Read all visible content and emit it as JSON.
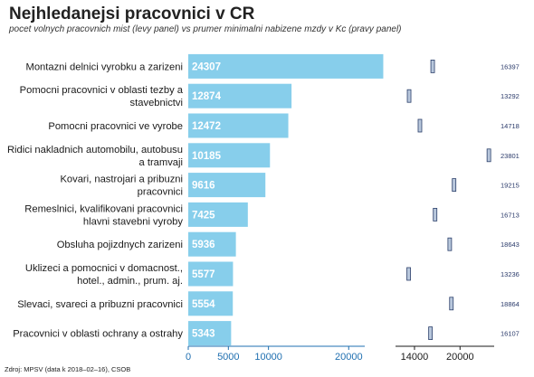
{
  "title": "Nejhledanejsi pracovnici v CR",
  "subtitle": "pocet volnych pracovnich mist (levy panel) vs prumer minimalni nabizene mzdy v Kc (pravy panel)",
  "source": "Zdroj: MPSV (data k 2018–02–16), CSOB",
  "colors": {
    "bar": "#87CEEB",
    "marker_fill": "#b8c7dc",
    "marker_stroke": "#2b3f6a",
    "axis_left": "#1f6fb0",
    "axis_right": "#1a1a1a"
  },
  "chart_data": [
    {
      "type": "bar",
      "orientation": "horizontal",
      "title": "",
      "xlabel": "",
      "ylabel": "",
      "xlim": [
        0,
        22000
      ],
      "xticks": [
        0,
        5000,
        10000,
        20000
      ],
      "xtick_labels": [
        "0",
        "5000",
        "10000",
        "20000"
      ],
      "grid": false,
      "categories": [
        [
          "Montazni delnici vyrobku a zarizeni"
        ],
        [
          "Pomocni pracovnici v oblasti tezby a",
          "stavebnictvi"
        ],
        [
          "Pomocni pracovnici ve vyrobe"
        ],
        [
          "Ridici nakladnich automobilu, autobusu",
          "a tramvaji"
        ],
        [
          "Kovari, nastrojari a pribuzni",
          "pracovnici"
        ],
        [
          "Remeslnici, kvalifikovani pracovnici",
          "hlavni stavebni vyroby"
        ],
        [
          "Obsluha pojizdnych zarizeni"
        ],
        [
          "Uklizeci a pomocnici v domacnost.,",
          "hotel., admin., prum. aj."
        ],
        [
          "Slevaci, svareci a pribuzni pracovnici"
        ],
        [
          "Pracovnici v oblasti ochrany a ostrahy"
        ]
      ],
      "values": [
        24307,
        12874,
        12472,
        10185,
        9616,
        7425,
        5936,
        5577,
        5554,
        5343
      ],
      "value_labels": [
        "24307",
        "12874",
        "12472",
        "10185",
        "9616",
        "7425",
        "5936",
        "5577",
        "5554",
        "5343"
      ]
    },
    {
      "type": "scatter",
      "marker": "tall-rectangle",
      "title": "",
      "xlabel": "",
      "xlim": [
        11500,
        24500
      ],
      "xticks": [
        14000,
        20000
      ],
      "xtick_labels": [
        "14000",
        "20000"
      ],
      "grid": false,
      "values": [
        16397,
        13292,
        14718,
        23801,
        19215,
        16713,
        18643,
        13236,
        18864,
        16107
      ],
      "value_labels": [
        "16397",
        "13292",
        "14718",
        "23801",
        "19215",
        "16713",
        "18643",
        "13236",
        "18864",
        "16107"
      ]
    }
  ]
}
